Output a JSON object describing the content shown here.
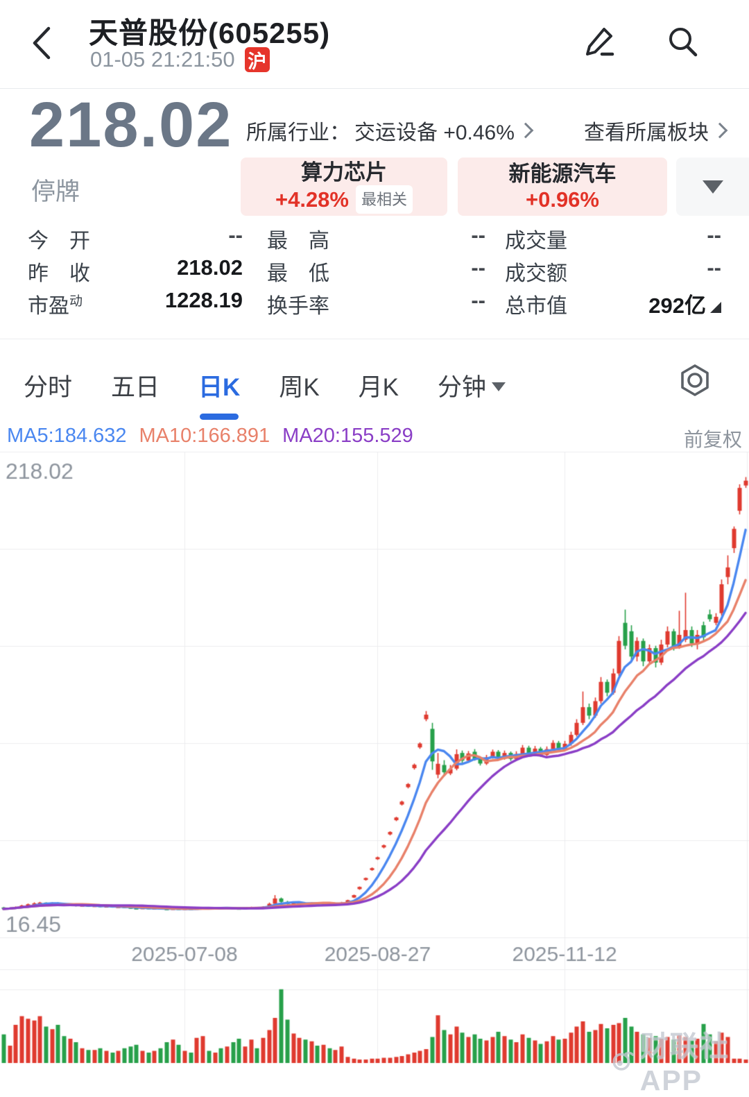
{
  "header": {
    "title": "天普股份(605255)",
    "time": "01-05 21:21:50",
    "exchange_badge": "沪"
  },
  "quote": {
    "price": "218.02",
    "status": "停牌",
    "industry_prefix": "所属行业：",
    "industry": "交运设备 +0.46%",
    "board_link": "查看所属板块"
  },
  "tags": [
    {
      "name": "算力芯片",
      "change": "+4.28%",
      "badge": "最相关"
    },
    {
      "name": "新能源汽车",
      "change": "+0.96%"
    }
  ],
  "stats": {
    "rows": [
      {
        "cells": [
          {
            "label": "今　开",
            "value": "--"
          },
          {
            "label": "最　高",
            "value": "--"
          },
          {
            "label": "成交量",
            "value": "--"
          }
        ]
      },
      {
        "cells": [
          {
            "label": "昨　收",
            "value": "218.02"
          },
          {
            "label": "最　低",
            "value": "--"
          },
          {
            "label": "成交额",
            "value": "--"
          }
        ]
      },
      {
        "cells": [
          {
            "label": "市盈",
            "sup": "动",
            "value": "1228.19"
          },
          {
            "label": "换手率",
            "value": "--"
          },
          {
            "label": "总市值",
            "value": "292亿"
          }
        ]
      }
    ]
  },
  "tabs": [
    {
      "label": "分时"
    },
    {
      "label": "五日"
    },
    {
      "label": "日K"
    },
    {
      "label": "周K"
    },
    {
      "label": "月K"
    },
    {
      "label": "分钟"
    }
  ],
  "chart_data": {
    "type": "candlestick",
    "title": "日K 前复权",
    "adjust_label": "前复权",
    "y_max": 218.02,
    "y_min": 16.45,
    "y_label_top": "218.02",
    "y_label_bottom": "16.45",
    "grid_rows": 5,
    "up_color": "#df3a2f",
    "down_color": "#27a04a",
    "grid_color": "#ececef",
    "watermark": "财联社APP",
    "ma": [
      {
        "period": 5,
        "label": "MA5:184.632",
        "color": "#4a87f0"
      },
      {
        "period": 10,
        "label": "MA10:166.891",
        "color": "#e8816a"
      },
      {
        "period": 20,
        "label": "MA20:155.529",
        "color": "#8a3ec6"
      }
    ],
    "x_ticks": [
      {
        "label": "2025-07-08",
        "index": 30
      },
      {
        "label": "2025-08-27",
        "index": 62
      },
      {
        "label": "2025-11-12",
        "index": 93
      }
    ],
    "candles_format": [
      "open",
      "high",
      "low",
      "close",
      "relative_volume"
    ],
    "candles": [
      [
        28.9,
        29.1,
        28.1,
        28.3,
        0.33
      ],
      [
        28.3,
        28.8,
        28.2,
        28.6,
        0.2
      ],
      [
        28.6,
        29.3,
        28.5,
        29.1,
        0.44
      ],
      [
        29.1,
        30.0,
        29.0,
        29.7,
        0.54
      ],
      [
        29.7,
        30.5,
        29.6,
        30.2,
        0.51
      ],
      [
        30.2,
        31.0,
        30.1,
        30.6,
        0.49
      ],
      [
        30.6,
        31.2,
        30.4,
        30.9,
        0.54
      ],
      [
        30.9,
        31.0,
        30.2,
        30.4,
        0.42
      ],
      [
        30.4,
        31.0,
        30.3,
        30.7,
        0.39
      ],
      [
        30.8,
        31.0,
        30.0,
        30.2,
        0.44
      ],
      [
        30.2,
        30.4,
        29.5,
        29.7,
        0.31
      ],
      [
        29.7,
        30.2,
        29.5,
        30.0,
        0.28
      ],
      [
        30.0,
        30.1,
        29.3,
        29.5,
        0.24
      ],
      [
        29.5,
        30.0,
        29.4,
        29.8,
        0.17
      ],
      [
        29.8,
        29.9,
        29.2,
        29.4,
        0.15
      ],
      [
        29.4,
        29.8,
        29.3,
        29.6,
        0.15
      ],
      [
        29.6,
        29.7,
        29.0,
        29.2,
        0.17
      ],
      [
        29.2,
        29.6,
        29.1,
        29.4,
        0.14
      ],
      [
        29.4,
        29.5,
        28.8,
        29.0,
        0.12
      ],
      [
        29.0,
        29.4,
        28.9,
        29.2,
        0.14
      ],
      [
        29.2,
        29.3,
        28.7,
        28.9,
        0.17
      ],
      [
        28.9,
        29.0,
        28.4,
        28.6,
        0.19
      ],
      [
        28.6,
        28.8,
        28.2,
        28.4,
        0.21
      ],
      [
        28.4,
        28.9,
        28.3,
        28.7,
        0.14
      ],
      [
        28.7,
        28.8,
        28.2,
        28.4,
        0.12
      ],
      [
        28.4,
        28.8,
        28.3,
        28.6,
        0.14
      ],
      [
        28.6,
        28.7,
        28.1,
        28.3,
        0.17
      ],
      [
        28.3,
        28.4,
        27.9,
        28.1,
        0.24
      ],
      [
        28.1,
        28.6,
        28.0,
        28.4,
        0.27
      ],
      [
        28.4,
        28.5,
        28.0,
        28.2,
        0.21
      ],
      [
        28.2,
        28.6,
        28.1,
        28.4,
        0.14
      ],
      [
        28.4,
        28.5,
        28.0,
        28.2,
        0.12
      ],
      [
        28.2,
        28.7,
        28.1,
        28.5,
        0.29
      ],
      [
        28.5,
        29.1,
        28.4,
        28.9,
        0.31
      ],
      [
        28.9,
        29.0,
        28.4,
        28.6,
        0.14
      ],
      [
        28.6,
        29.0,
        28.5,
        28.8,
        0.12
      ],
      [
        28.8,
        28.9,
        28.3,
        28.5,
        0.17
      ],
      [
        28.5,
        29.0,
        28.4,
        28.8,
        0.19
      ],
      [
        28.8,
        28.9,
        28.3,
        28.5,
        0.24
      ],
      [
        28.5,
        28.6,
        28.1,
        28.3,
        0.28
      ],
      [
        28.3,
        28.8,
        28.2,
        28.6,
        0.19
      ],
      [
        28.6,
        29.2,
        28.5,
        29.0,
        0.27
      ],
      [
        29.0,
        29.1,
        28.5,
        28.7,
        0.17
      ],
      [
        28.7,
        29.4,
        28.6,
        29.2,
        0.29
      ],
      [
        29.2,
        30.9,
        29.1,
        30.4,
        0.38
      ],
      [
        30.4,
        34.0,
        30.2,
        32.6,
        0.52
      ],
      [
        32.6,
        33.0,
        30.8,
        31.2,
        0.85
      ],
      [
        31.2,
        31.6,
        29.9,
        30.3,
        0.5
      ],
      [
        30.3,
        30.9,
        29.9,
        30.6,
        0.34
      ],
      [
        30.6,
        31.1,
        30.3,
        30.8,
        0.29
      ],
      [
        30.8,
        30.9,
        30.2,
        30.4,
        0.27
      ],
      [
        30.4,
        31.0,
        30.3,
        30.7,
        0.25
      ],
      [
        30.7,
        30.8,
        30.1,
        30.3,
        0.2
      ],
      [
        30.3,
        30.9,
        30.2,
        30.6,
        0.21
      ],
      [
        30.6,
        30.7,
        30.0,
        30.2,
        0.17
      ],
      [
        30.2,
        30.8,
        30.1,
        30.5,
        0.15
      ],
      [
        30.5,
        31.2,
        30.4,
        30.9,
        0.19
      ],
      [
        31.0,
        32.1,
        30.8,
        31.9,
        0.07
      ],
      [
        33.0,
        34.2,
        32.8,
        34.0,
        0.05
      ],
      [
        36.5,
        37.6,
        36.2,
        37.4,
        0.04
      ],
      [
        40.3,
        41.3,
        40.0,
        41.1,
        0.04
      ],
      [
        44.4,
        45.5,
        44.1,
        45.2,
        0.05
      ],
      [
        48.9,
        50.0,
        48.6,
        49.7,
        0.05
      ],
      [
        53.8,
        55.0,
        53.4,
        54.7,
        0.06
      ],
      [
        59.2,
        60.5,
        58.8,
        60.2,
        0.06
      ],
      [
        65.1,
        66.5,
        64.7,
        66.2,
        0.07
      ],
      [
        71.6,
        73.2,
        71.2,
        72.8,
        0.08
      ],
      [
        78.8,
        80.5,
        78.3,
        80.1,
        0.1
      ],
      [
        86.7,
        88.6,
        86.1,
        88.1,
        0.12
      ],
      [
        95.3,
        97.4,
        94.7,
        96.9,
        0.14
      ],
      [
        107.0,
        110.4,
        106.2,
        108.9,
        0.16
      ],
      [
        103.0,
        105.5,
        86.0,
        89.5,
        0.3
      ],
      [
        84.0,
        93.0,
        82.5,
        88.5,
        0.55
      ],
      [
        88.0,
        90.0,
        83.5,
        85.0,
        0.38
      ],
      [
        84.5,
        88.0,
        83.8,
        86.3,
        0.33
      ],
      [
        86.5,
        94.5,
        85.8,
        92.5,
        0.42
      ],
      [
        93.0,
        94.0,
        88.9,
        89.8,
        0.35
      ],
      [
        89.8,
        93.8,
        89.2,
        92.8,
        0.3
      ],
      [
        93.5,
        94.6,
        89.8,
        90.5,
        0.33
      ],
      [
        90.5,
        91.4,
        87.8,
        88.6,
        0.28
      ],
      [
        88.6,
        92.2,
        88.0,
        91.2,
        0.26
      ],
      [
        91.2,
        94.4,
        90.6,
        93.5,
        0.3
      ],
      [
        93.5,
        94.2,
        90.0,
        90.8,
        0.36
      ],
      [
        90.8,
        94.0,
        90.2,
        93.0,
        0.31
      ],
      [
        93.0,
        93.6,
        89.7,
        90.5,
        0.27
      ],
      [
        90.5,
        93.7,
        90.0,
        92.6,
        0.24
      ],
      [
        92.6,
        96.3,
        92.0,
        95.2,
        0.33
      ],
      [
        95.2,
        96.0,
        91.6,
        92.4,
        0.29
      ],
      [
        92.4,
        95.9,
        91.9,
        94.8,
        0.26
      ],
      [
        94.8,
        95.5,
        91.4,
        92.2,
        0.22
      ],
      [
        92.2,
        95.7,
        91.7,
        94.6,
        0.25
      ],
      [
        94.6,
        98.3,
        94.0,
        97.2,
        0.31
      ],
      [
        97.2,
        98.0,
        93.6,
        94.4,
        0.27
      ],
      [
        94.4,
        98.0,
        93.8,
        96.8,
        0.28
      ],
      [
        96.8,
        101.8,
        96.0,
        100.5,
        0.35
      ],
      [
        100.5,
        107.0,
        99.8,
        105.5,
        0.42
      ],
      [
        105.5,
        118.5,
        104.6,
        112.0,
        0.48
      ],
      [
        112.0,
        113.5,
        107.0,
        108.5,
        0.36
      ],
      [
        108.5,
        116.0,
        107.6,
        114.5,
        0.38
      ],
      [
        114.5,
        124.5,
        113.5,
        122.5,
        0.45
      ],
      [
        122.5,
        123.5,
        116.5,
        118.0,
        0.4
      ],
      [
        118.0,
        128.0,
        117.2,
        126.0,
        0.44
      ],
      [
        126.0,
        141.5,
        125.0,
        139.5,
        0.46
      ],
      [
        147.0,
        152.5,
        136.0,
        137.5,
        0.52
      ],
      [
        143.5,
        146.0,
        131.5,
        133.0,
        0.42
      ],
      [
        133.0,
        141.0,
        131.0,
        139.5,
        0.36
      ],
      [
        139.5,
        140.5,
        129.0,
        131.0,
        0.33
      ],
      [
        131.0,
        138.0,
        129.8,
        136.5,
        0.29
      ],
      [
        136.5,
        137.5,
        128.5,
        130.5,
        0.31
      ],
      [
        130.5,
        140.0,
        129.5,
        138.0,
        0.28
      ],
      [
        138.0,
        145.5,
        136.8,
        143.5,
        0.3
      ],
      [
        143.5,
        144.5,
        135.5,
        137.0,
        0.27
      ],
      [
        137.0,
        152.0,
        136.2,
        142.0,
        0.32
      ],
      [
        140.0,
        159.5,
        139.0,
        144.0,
        0.3
      ],
      [
        144.0,
        145.5,
        137.0,
        138.5,
        0.26
      ],
      [
        138.5,
        144.0,
        136.0,
        142.0,
        0.28
      ],
      [
        146.0,
        147.5,
        139.5,
        141.0,
        0.45
      ],
      [
        150.5,
        152.5,
        147.5,
        148.5,
        0.33
      ],
      [
        147.0,
        151.0,
        146.0,
        149.5,
        0.25
      ],
      [
        151.0,
        165.0,
        150.0,
        163.0,
        0.35
      ],
      [
        166.0,
        175.0,
        163.0,
        170.0,
        0.3
      ],
      [
        178.0,
        187.0,
        176.0,
        186.0,
        0.05
      ],
      [
        193.5,
        204.5,
        192.0,
        203.0,
        0.05
      ],
      [
        204.0,
        207.5,
        203.0,
        206.0,
        0.04
      ]
    ]
  }
}
